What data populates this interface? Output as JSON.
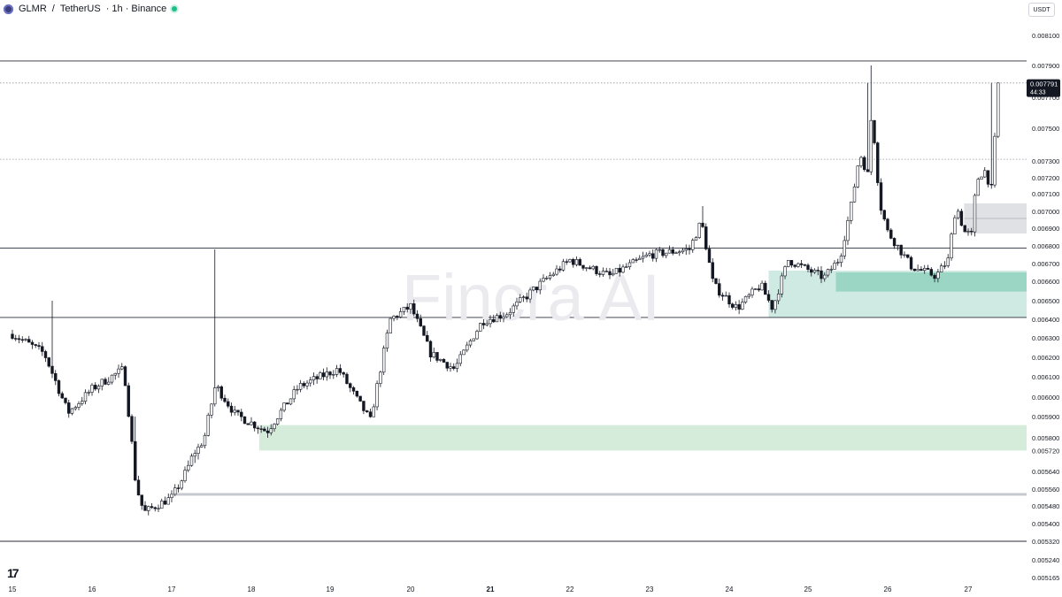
{
  "header": {
    "symbol": "GLMR",
    "separator": "/",
    "quote": "TetherUS",
    "meta": "· 1h · Binance",
    "status_color": "#1bbf8a"
  },
  "unit_label": "USDT",
  "watermark": "Fincra AI",
  "tv_logo": "17",
  "colors": {
    "candle": "#131722",
    "up_fill": "#ffffff",
    "zone_light": "#d4ecd9",
    "zone_teal_light": "#cfeae2",
    "zone_teal_dark": "#9ad6c3",
    "zone_grey": "#e0e1e5",
    "price_tag_bg": "#131722"
  },
  "chart_data": {
    "type": "candlestick",
    "y_scale": "log",
    "ylim": [
      0.005165,
      0.0082
    ],
    "y_tick_labels": [
      "0.008100",
      "0.007900",
      "0.007700",
      "0.007500",
      "0.007300",
      "0.007200",
      "0.007100",
      "0.007000",
      "0.006900",
      "0.006800",
      "0.006700",
      "0.006600",
      "0.006500",
      "0.006400",
      "0.006300",
      "0.006200",
      "0.006100",
      "0.006000",
      "0.005900",
      "0.005800",
      "0.005720",
      "0.005640",
      "0.005560",
      "0.005480",
      "0.005400",
      "0.005320",
      "0.005240",
      "0.005165"
    ],
    "x_tick_labels": [
      "15",
      "16",
      "17",
      "18",
      "19",
      "20",
      "21",
      "22",
      "23",
      "24",
      "25",
      "26",
      "27"
    ],
    "x_tick_days": [
      15,
      16,
      17,
      18,
      19,
      20,
      21,
      22,
      23,
      24,
      25,
      26,
      27
    ],
    "x_bold_labels": [
      "21"
    ],
    "price": {
      "value": "0.007791",
      "timer": "44:33"
    },
    "horizontal_levels": [
      {
        "price": 0.00793,
        "style": "solid"
      },
      {
        "price": 0.00779,
        "style": "dotted"
      },
      {
        "price": 0.00731,
        "style": "dotted"
      },
      {
        "price": 0.006787,
        "style": "solid"
      },
      {
        "price": 0.00641,
        "style": "solid"
      },
      {
        "price": 0.00532,
        "style": "solid"
      },
      {
        "price": 0.005535,
        "style": "band",
        "from_day": 17.05
      }
    ],
    "zones": [
      {
        "from_day": 18.1,
        "top": 0.00586,
        "bottom": 0.00572,
        "color_key": "zone_light"
      },
      {
        "from_day": 24.5,
        "top": 0.00666,
        "bottom": 0.00641,
        "color_key": "zone_teal_light"
      },
      {
        "from_day": 25.35,
        "top": 0.00665,
        "bottom": 0.006547,
        "color_key": "zone_teal_dark"
      },
      {
        "from_day": 26.95,
        "top": 0.007045,
        "bottom": 0.00687,
        "color_key": "zone_grey"
      }
    ],
    "key_points": [
      {
        "day": 15.0,
        "price": 0.00632
      },
      {
        "day": 15.4,
        "price": 0.00622
      },
      {
        "day": 15.7,
        "price": 0.00592
      },
      {
        "day": 16.0,
        "price": 0.00604
      },
      {
        "day": 16.4,
        "price": 0.00614
      },
      {
        "day": 16.55,
        "price": 0.00558
      },
      {
        "day": 16.65,
        "price": 0.00545
      },
      {
        "day": 17.0,
        "price": 0.00552
      },
      {
        "day": 17.4,
        "price": 0.00578
      },
      {
        "day": 17.55,
        "price": 0.00606
      },
      {
        "day": 17.8,
        "price": 0.00591
      },
      {
        "day": 18.2,
        "price": 0.00583
      },
      {
        "day": 18.6,
        "price": 0.00605
      },
      {
        "day": 19.1,
        "price": 0.00614
      },
      {
        "day": 19.5,
        "price": 0.00588
      },
      {
        "day": 19.75,
        "price": 0.0064
      },
      {
        "day": 20.0,
        "price": 0.00647
      },
      {
        "day": 20.25,
        "price": 0.00622
      },
      {
        "day": 20.55,
        "price": 0.00614
      },
      {
        "day": 20.9,
        "price": 0.00639
      },
      {
        "day": 21.2,
        "price": 0.00643
      },
      {
        "day": 21.5,
        "price": 0.00654
      },
      {
        "day": 22.0,
        "price": 0.00672
      },
      {
        "day": 22.5,
        "price": 0.00663
      },
      {
        "day": 23.0,
        "price": 0.00675
      },
      {
        "day": 23.5,
        "price": 0.00678
      },
      {
        "day": 23.65,
        "price": 0.00694
      },
      {
        "day": 23.8,
        "price": 0.00658
      },
      {
        "day": 24.1,
        "price": 0.00646
      },
      {
        "day": 24.4,
        "price": 0.00658
      },
      {
        "day": 24.55,
        "price": 0.00646
      },
      {
        "day": 24.75,
        "price": 0.00672
      },
      {
        "day": 25.2,
        "price": 0.00662
      },
      {
        "day": 25.4,
        "price": 0.00673
      },
      {
        "day": 25.55,
        "price": 0.00705
      },
      {
        "day": 25.65,
        "price": 0.00735
      },
      {
        "day": 25.75,
        "price": 0.00722
      },
      {
        "day": 25.8,
        "price": 0.00762
      },
      {
        "day": 25.9,
        "price": 0.00705
      },
      {
        "day": 26.0,
        "price": 0.00688
      },
      {
        "day": 26.3,
        "price": 0.00668
      },
      {
        "day": 26.6,
        "price": 0.00663
      },
      {
        "day": 26.75,
        "price": 0.00672
      },
      {
        "day": 26.85,
        "price": 0.00704
      },
      {
        "day": 26.95,
        "price": 0.00688
      },
      {
        "day": 27.05,
        "price": 0.00686
      },
      {
        "day": 27.1,
        "price": 0.00718
      },
      {
        "day": 27.2,
        "price": 0.00725
      },
      {
        "day": 27.3,
        "price": 0.00712
      },
      {
        "day": 27.35,
        "price": 0.00758
      },
      {
        "day": 27.38,
        "price": 0.00779
      }
    ]
  }
}
